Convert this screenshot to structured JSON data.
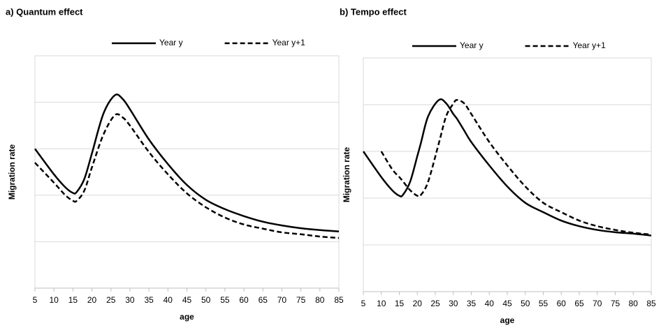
{
  "chart_data": [
    {
      "type": "line",
      "title": "a) Quantum effect",
      "x_label": "age",
      "y_label": "Migration rate",
      "x": [
        5,
        10,
        13,
        15,
        16,
        18,
        20,
        23,
        26,
        28,
        30,
        35,
        40,
        45,
        50,
        55,
        60,
        65,
        70,
        75,
        80,
        85
      ],
      "series": [
        {
          "name": "Year y",
          "color": "#000000",
          "line_style": "solid",
          "values": [
            3.0,
            2.45,
            2.17,
            2.05,
            2.07,
            2.35,
            2.9,
            3.75,
            4.15,
            4.08,
            3.85,
            3.2,
            2.67,
            2.22,
            1.9,
            1.7,
            1.55,
            1.43,
            1.35,
            1.29,
            1.25,
            1.22
          ]
        },
        {
          "name": "Year y+1",
          "color": "#000000",
          "line_style": "dashed",
          "values": [
            2.7,
            2.27,
            2.0,
            1.88,
            1.88,
            2.1,
            2.6,
            3.3,
            3.72,
            3.68,
            3.5,
            2.93,
            2.45,
            2.04,
            1.74,
            1.52,
            1.37,
            1.28,
            1.2,
            1.16,
            1.11,
            1.08
          ]
        }
      ],
      "xlim": [
        5,
        85
      ],
      "xticks": [
        5,
        10,
        15,
        20,
        25,
        30,
        35,
        40,
        45,
        50,
        55,
        60,
        65,
        70,
        75,
        80,
        85
      ],
      "ylim": [
        0,
        5
      ],
      "yticks": [
        1,
        2,
        3,
        4
      ],
      "grid": true,
      "legend": "top"
    },
    {
      "type": "line",
      "title": "b) Tempo effect",
      "x_label": "age",
      "y_label": "Migration rate",
      "x": [
        5,
        10,
        13,
        15,
        16,
        18,
        20,
        21,
        23,
        26,
        28,
        30,
        31,
        33,
        35,
        40,
        45,
        50,
        55,
        60,
        65,
        70,
        75,
        80,
        85
      ],
      "series": [
        {
          "name": "Year y",
          "color": "#000000",
          "line_style": "solid",
          "values": [
            3.0,
            2.45,
            2.17,
            2.05,
            2.07,
            2.35,
            2.9,
            3.18,
            3.75,
            4.1,
            4.03,
            3.8,
            3.7,
            3.45,
            3.2,
            2.7,
            2.25,
            1.9,
            1.7,
            1.52,
            1.4,
            1.32,
            1.27,
            1.24,
            1.2
          ]
        },
        {
          "name": "Year y+1",
          "color": "#000000",
          "line_style": "dashed",
          "values": [
            null,
            3.0,
            2.62,
            2.45,
            2.36,
            2.17,
            2.05,
            2.07,
            2.35,
            3.18,
            3.75,
            4.02,
            4.1,
            4.03,
            3.8,
            3.2,
            2.7,
            2.25,
            1.9,
            1.7,
            1.52,
            1.4,
            1.32,
            1.26,
            1.22
          ]
        }
      ],
      "xlim": [
        5,
        85
      ],
      "xticks": [
        5,
        10,
        15,
        20,
        25,
        30,
        35,
        40,
        45,
        50,
        55,
        60,
        65,
        70,
        75,
        80,
        85
      ],
      "ylim": [
        0,
        5
      ],
      "yticks": [
        1,
        2,
        3,
        4
      ],
      "grid": true,
      "legend": "top"
    }
  ]
}
